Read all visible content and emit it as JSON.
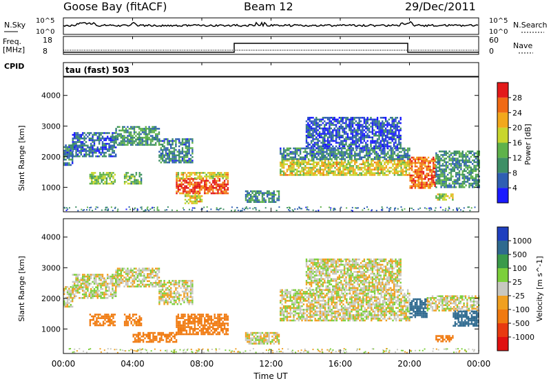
{
  "header": {
    "station": "Goose Bay (fitACF)",
    "beam": "Beam 12",
    "date": "29/Dec/2011"
  },
  "strip_panels": {
    "nsky_label": "N.Sky",
    "nsky_ticks": [
      "10^5",
      "10^0"
    ],
    "nsearch_label": "N.Search",
    "nsearch_ticks": [
      "10^5",
      "10^0"
    ],
    "freq_label_1": "Freq.",
    "freq_label_2": "[MHz]",
    "freq_ticks": [
      "18",
      "8"
    ],
    "nave_label": "Nave",
    "nave_ticks": [
      "60",
      "0"
    ],
    "cpid_label": "CPID",
    "cpid_value": "tau (fast) 503"
  },
  "colors": {
    "power_scale": [
      "#1a1aff",
      "#2f5fb3",
      "#3e8f66",
      "#5fb24a",
      "#c8d62e",
      "#f2a81c",
      "#f06a14",
      "#e31a1a"
    ],
    "velocity_scale": [
      "#1f3fbf",
      "#2f6a8f",
      "#3a9a4a",
      "#7ccf3a",
      "#c8c8c0",
      "#f0a020",
      "#f07a10",
      "#e83a10",
      "#e01010"
    ]
  },
  "chart_data": [
    {
      "type": "heatmap",
      "panel": "power",
      "ylabel": "Slant Range [km]",
      "yticks": [
        1000,
        2000,
        3000,
        4000
      ],
      "ylim": [
        200,
        4600
      ],
      "x_ticks": [
        "00:00",
        "04:00",
        "08:00",
        "12:00",
        "16:00",
        "20:00",
        "00:00"
      ],
      "xlim_hours": [
        0,
        24
      ],
      "colorbar_label": "Power [dB]",
      "colorbar_ticks": [
        "4",
        "8",
        "12",
        "16",
        "20",
        "24",
        "28"
      ],
      "colorbar_range": [
        0,
        30
      ],
      "regions": [
        {
          "t0": 0.0,
          "t1": 0.5,
          "r0": 1700,
          "r1": 2400,
          "value": 8
        },
        {
          "t0": 0.5,
          "t1": 3.0,
          "r0": 2000,
          "r1": 2800,
          "value": 6
        },
        {
          "t0": 3.0,
          "t1": 5.5,
          "r0": 2400,
          "r1": 3000,
          "value": 10
        },
        {
          "t0": 5.5,
          "t1": 7.5,
          "r0": 1800,
          "r1": 2600,
          "value": 8
        },
        {
          "t0": 1.5,
          "t1": 3.0,
          "r0": 1100,
          "r1": 1500,
          "value": 14
        },
        {
          "t0": 3.5,
          "t1": 4.5,
          "r0": 1100,
          "r1": 1500,
          "value": 12
        },
        {
          "t0": 6.5,
          "t1": 9.5,
          "r0": 800,
          "r1": 1300,
          "value": 26
        },
        {
          "t0": 6.5,
          "t1": 9.5,
          "r0": 1300,
          "r1": 1500,
          "value": 18
        },
        {
          "t0": 7.0,
          "t1": 8.0,
          "r0": 500,
          "r1": 800,
          "value": 18
        },
        {
          "t0": 10.5,
          "t1": 12.5,
          "r0": 500,
          "r1": 900,
          "value": 9
        },
        {
          "t0": 12.5,
          "t1": 20.0,
          "r0": 1400,
          "r1": 1900,
          "value": 18
        },
        {
          "t0": 12.5,
          "t1": 20.0,
          "r0": 1900,
          "r1": 2300,
          "value": 8
        },
        {
          "t0": 14.0,
          "t1": 19.5,
          "r0": 2300,
          "r1": 3300,
          "value": 5
        },
        {
          "t0": 20.0,
          "t1": 21.5,
          "r0": 1000,
          "r1": 2000,
          "value": 24
        },
        {
          "t0": 21.5,
          "t1": 24.0,
          "r0": 1000,
          "r1": 2200,
          "value": 10
        },
        {
          "t0": 21.5,
          "t1": 22.5,
          "r0": 600,
          "r1": 800,
          "value": 16
        }
      ]
    },
    {
      "type": "heatmap",
      "panel": "velocity",
      "ylabel": "Slant Range [km]",
      "yticks": [
        1000,
        2000,
        3000,
        4000
      ],
      "ylim": [
        200,
        4600
      ],
      "x_ticks": [
        "00:00",
        "04:00",
        "08:00",
        "12:00",
        "16:00",
        "20:00",
        "00:00"
      ],
      "xlim_hours": [
        0,
        24
      ],
      "xlabel": "Time UT",
      "colorbar_label": "Velocity [m s^-1]",
      "colorbar_ticks": [
        "1000",
        "500",
        "100",
        "25",
        "-25",
        "-100",
        "-500",
        "-1000"
      ],
      "regions": [
        {
          "t0": 0.0,
          "t1": 0.5,
          "r0": 1700,
          "r1": 2400,
          "value": 0
        },
        {
          "t0": 0.5,
          "t1": 3.0,
          "r0": 2000,
          "r1": 2800,
          "value": 0
        },
        {
          "t0": 3.0,
          "t1": 5.5,
          "r0": 2400,
          "r1": 3000,
          "value": 0
        },
        {
          "t0": 5.5,
          "t1": 7.5,
          "r0": 1800,
          "r1": 2600,
          "value": 0
        },
        {
          "t0": 1.5,
          "t1": 3.0,
          "r0": 1100,
          "r1": 1500,
          "value": -150
        },
        {
          "t0": 3.5,
          "t1": 4.5,
          "r0": 1100,
          "r1": 1500,
          "value": -150
        },
        {
          "t0": 6.5,
          "t1": 9.5,
          "r0": 800,
          "r1": 1500,
          "value": -200
        },
        {
          "t0": 4.0,
          "t1": 6.5,
          "r0": 600,
          "r1": 900,
          "value": -250
        },
        {
          "t0": 10.5,
          "t1": 12.5,
          "r0": 500,
          "r1": 900,
          "value": 0
        },
        {
          "t0": 12.5,
          "t1": 20.0,
          "r0": 1300,
          "r1": 2300,
          "value": 0
        },
        {
          "t0": 14.0,
          "t1": 19.5,
          "r0": 2300,
          "r1": 3300,
          "value": 0
        },
        {
          "t0": 20.0,
          "t1": 21.0,
          "r0": 1400,
          "r1": 2000,
          "value": 700
        },
        {
          "t0": 21.0,
          "t1": 24.0,
          "r0": 1600,
          "r1": 2100,
          "value": 0
        },
        {
          "t0": 22.5,
          "t1": 24.0,
          "r0": 1100,
          "r1": 1600,
          "value": 600
        },
        {
          "t0": 21.5,
          "t1": 22.5,
          "r0": 600,
          "r1": 800,
          "value": -300
        }
      ]
    }
  ]
}
